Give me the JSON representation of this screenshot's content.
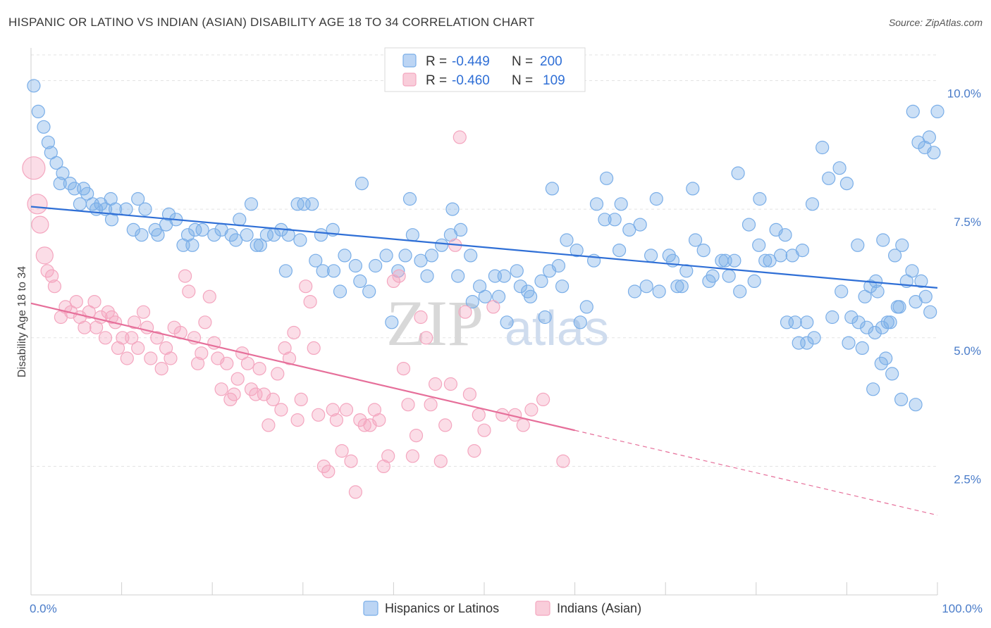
{
  "header": {
    "title": "HISPANIC OR LATINO VS INDIAN (ASIAN) DISABILITY AGE 18 TO 34 CORRELATION CHART",
    "source": "Source: ZipAtlas.com"
  },
  "watermark": {
    "zip": "ZIP",
    "atlas": "atlas"
  },
  "legend": {
    "r_label": "R =",
    "n_label": "N =",
    "rows": [
      {
        "r": "-0.449",
        "n": "200",
        "color": "#7aaee8"
      },
      {
        "r": "-0.460",
        "n": "109",
        "color": "#f4a6bf"
      }
    ]
  },
  "chart_data": {
    "type": "scatter",
    "title": "HISPANIC OR LATINO VS INDIAN (ASIAN) DISABILITY AGE 18 TO 34 CORRELATION CHART",
    "xlabel": "",
    "ylabel": "Disability Age 18 to 34",
    "xlim": [
      0,
      100
    ],
    "ylim": [
      0,
      10.5
    ],
    "x_tick_labels": [
      "0.0%",
      "100.0%"
    ],
    "y_ticks": [
      2.5,
      5.0,
      7.5,
      10.0
    ],
    "y_tick_labels": [
      "2.5%",
      "5.0%",
      "7.5%",
      "10.0%"
    ],
    "grid": true,
    "legend_position": "top-center",
    "series": [
      {
        "name": "Hispanics or Latinos",
        "color": "#7aaee8",
        "line_color": "#2f6fd6",
        "trend": {
          "x": [
            0,
            100
          ],
          "y": [
            7.55,
            5.97
          ]
        },
        "points": [
          [
            0.3,
            9.9
          ],
          [
            0.8,
            9.4
          ],
          [
            1.4,
            9.1
          ],
          [
            1.9,
            8.8
          ],
          [
            2.2,
            8.6
          ],
          [
            2.8,
            8.4
          ],
          [
            3.5,
            8.2
          ],
          [
            3.2,
            8.0
          ],
          [
            4.3,
            8.0
          ],
          [
            4.8,
            7.9
          ],
          [
            5.8,
            7.9
          ],
          [
            6.2,
            7.8
          ],
          [
            5.4,
            7.6
          ],
          [
            6.8,
            7.6
          ],
          [
            7.7,
            7.6
          ],
          [
            8.8,
            7.7
          ],
          [
            7.2,
            7.5
          ],
          [
            8.2,
            7.5
          ],
          [
            9.3,
            7.5
          ],
          [
            8.9,
            7.3
          ],
          [
            10.5,
            7.5
          ],
          [
            11.8,
            7.7
          ],
          [
            12.6,
            7.5
          ],
          [
            13.7,
            7.1
          ],
          [
            14.9,
            7.2
          ],
          [
            15.2,
            7.4
          ],
          [
            11.3,
            7.1
          ],
          [
            12.2,
            7.0
          ],
          [
            14.0,
            7.0
          ],
          [
            16.0,
            7.3
          ],
          [
            17.3,
            7.0
          ],
          [
            18.1,
            7.1
          ],
          [
            18.9,
            7.1
          ],
          [
            20.2,
            7.0
          ],
          [
            21.0,
            7.1
          ],
          [
            22.1,
            7.0
          ],
          [
            23.0,
            7.3
          ],
          [
            24.3,
            7.6
          ],
          [
            23.8,
            7.0
          ],
          [
            25.3,
            6.8
          ],
          [
            26.0,
            7.0
          ],
          [
            26.8,
            7.0
          ],
          [
            27.6,
            7.1
          ],
          [
            16.8,
            6.8
          ],
          [
            17.8,
            6.8
          ],
          [
            22.6,
            6.9
          ],
          [
            24.9,
            6.8
          ],
          [
            28.4,
            7.0
          ],
          [
            29.4,
            7.6
          ],
          [
            30.1,
            7.6
          ],
          [
            31.0,
            7.6
          ],
          [
            32.0,
            7.0
          ],
          [
            33.4,
            6.3
          ],
          [
            34.6,
            6.6
          ],
          [
            35.8,
            6.4
          ],
          [
            36.3,
            6.1
          ],
          [
            37.3,
            5.9
          ],
          [
            38.0,
            6.4
          ],
          [
            39.2,
            6.6
          ],
          [
            40.5,
            6.3
          ],
          [
            41.3,
            6.6
          ],
          [
            42.1,
            7.0
          ],
          [
            43.0,
            6.5
          ],
          [
            44.2,
            6.6
          ],
          [
            45.3,
            6.8
          ],
          [
            46.3,
            7.0
          ],
          [
            47.4,
            7.1
          ],
          [
            48.5,
            6.6
          ],
          [
            49.5,
            6.0
          ],
          [
            50.1,
            5.8
          ],
          [
            51.6,
            5.8
          ],
          [
            52.2,
            6.2
          ],
          [
            53.6,
            6.3
          ],
          [
            54.0,
            6.0
          ],
          [
            55.1,
            5.8
          ],
          [
            56.3,
            6.1
          ],
          [
            57.2,
            6.3
          ],
          [
            58.2,
            6.4
          ],
          [
            59.1,
            6.9
          ],
          [
            60.2,
            6.7
          ],
          [
            61.3,
            5.6
          ],
          [
            62.4,
            7.6
          ],
          [
            63.3,
            7.3
          ],
          [
            64.4,
            7.3
          ],
          [
            65.1,
            7.6
          ],
          [
            66.0,
            7.1
          ],
          [
            67.2,
            7.2
          ],
          [
            68.4,
            6.6
          ],
          [
            69.3,
            5.9
          ],
          [
            70.4,
            6.6
          ],
          [
            71.3,
            6.0
          ],
          [
            72.3,
            6.3
          ],
          [
            73.3,
            6.9
          ],
          [
            74.2,
            6.7
          ],
          [
            75.2,
            6.2
          ],
          [
            76.2,
            6.5
          ],
          [
            77.0,
            6.2
          ],
          [
            78.2,
            5.9
          ],
          [
            79.2,
            7.2
          ],
          [
            80.3,
            6.8
          ],
          [
            81.0,
            6.5
          ],
          [
            82.2,
            7.1
          ],
          [
            83.2,
            7.0
          ],
          [
            84.0,
            6.6
          ],
          [
            85.1,
            6.7
          ],
          [
            86.2,
            7.6
          ],
          [
            87.3,
            8.7
          ],
          [
            88.0,
            8.1
          ],
          [
            89.2,
            8.3
          ],
          [
            90.0,
            8.0
          ],
          [
            91.2,
            6.8
          ],
          [
            92.0,
            5.8
          ],
          [
            93.2,
            6.1
          ],
          [
            94.0,
            6.9
          ],
          [
            95.3,
            6.6
          ],
          [
            96.1,
            6.8
          ],
          [
            97.2,
            6.3
          ],
          [
            98.2,
            6.1
          ],
          [
            99.2,
            5.5
          ],
          [
            36.5,
            8.0
          ],
          [
            41.8,
            7.7
          ],
          [
            46.5,
            7.5
          ],
          [
            57.5,
            7.9
          ],
          [
            63.5,
            8.1
          ],
          [
            69.0,
            7.7
          ],
          [
            73.0,
            7.9
          ],
          [
            78.0,
            8.2
          ],
          [
            80.4,
            7.7
          ],
          [
            83.4,
            5.3
          ],
          [
            84.7,
            4.9
          ],
          [
            84.3,
            5.3
          ],
          [
            85.6,
            5.3
          ],
          [
            86.4,
            5.0
          ],
          [
            88.4,
            5.4
          ],
          [
            89.4,
            5.9
          ],
          [
            90.5,
            5.4
          ],
          [
            91.3,
            5.3
          ],
          [
            92.6,
            6.0
          ],
          [
            93.4,
            5.9
          ],
          [
            94.5,
            5.3
          ],
          [
            95.6,
            5.6
          ],
          [
            96.6,
            6.1
          ],
          [
            97.6,
            5.7
          ],
          [
            98.7,
            5.8
          ],
          [
            28.1,
            6.3
          ],
          [
            29.7,
            6.9
          ],
          [
            31.4,
            6.5
          ],
          [
            32.2,
            6.3
          ],
          [
            33.3,
            7.1
          ],
          [
            34.1,
            5.9
          ],
          [
            39.8,
            5.3
          ],
          [
            43.7,
            6.2
          ],
          [
            47.1,
            6.2
          ],
          [
            48.7,
            5.7
          ],
          [
            51.2,
            6.2
          ],
          [
            52.5,
            5.3
          ],
          [
            54.8,
            5.9
          ],
          [
            56.7,
            5.4
          ],
          [
            58.6,
            6.0
          ],
          [
            60.6,
            5.3
          ],
          [
            62.1,
            6.5
          ],
          [
            64.9,
            6.7
          ],
          [
            66.6,
            5.9
          ],
          [
            67.9,
            6.0
          ],
          [
            70.8,
            6.5
          ],
          [
            71.8,
            6.0
          ],
          [
            74.8,
            6.1
          ],
          [
            76.6,
            6.5
          ],
          [
            77.6,
            6.5
          ],
          [
            79.8,
            6.1
          ],
          [
            81.5,
            6.5
          ],
          [
            82.7,
            6.6
          ],
          [
            85.6,
            4.9
          ],
          [
            90.2,
            4.9
          ],
          [
            91.7,
            4.8
          ],
          [
            93.1,
            5.1
          ],
          [
            93.8,
            4.5
          ],
          [
            97.3,
            9.4
          ],
          [
            97.9,
            8.8
          ],
          [
            98.6,
            8.7
          ],
          [
            99.1,
            8.9
          ],
          [
            99.6,
            8.6
          ],
          [
            100.0,
            9.4
          ],
          [
            95.0,
            4.3
          ],
          [
            94.3,
            4.6
          ],
          [
            96.0,
            3.8
          ],
          [
            97.6,
            3.7
          ],
          [
            92.9,
            4.0
          ],
          [
            92.2,
            5.2
          ],
          [
            93.9,
            5.2
          ],
          [
            94.8,
            5.3
          ],
          [
            95.8,
            5.6
          ]
        ]
      },
      {
        "name": "Indians (Asian)",
        "color": "#f4a6bf",
        "line_color": "#e66f9a",
        "trend": {
          "x": [
            0,
            60
          ],
          "y": [
            5.67,
            3.2
          ],
          "dashed_to": [
            100,
            1.55
          ]
        },
        "points": [
          [
            0.3,
            8.3
          ],
          [
            0.7,
            7.6
          ],
          [
            1.0,
            7.2
          ],
          [
            1.5,
            6.6
          ],
          [
            1.8,
            6.3
          ],
          [
            2.3,
            6.2
          ],
          [
            2.6,
            6.0
          ],
          [
            3.3,
            5.4
          ],
          [
            3.8,
            5.6
          ],
          [
            4.4,
            5.5
          ],
          [
            5.0,
            5.7
          ],
          [
            5.4,
            5.4
          ],
          [
            5.9,
            5.2
          ],
          [
            6.4,
            5.5
          ],
          [
            7.0,
            5.7
          ],
          [
            7.2,
            5.2
          ],
          [
            7.7,
            5.4
          ],
          [
            8.2,
            5.0
          ],
          [
            8.5,
            5.5
          ],
          [
            8.9,
            5.4
          ],
          [
            9.3,
            5.3
          ],
          [
            9.6,
            4.8
          ],
          [
            10.1,
            5.0
          ],
          [
            10.6,
            4.6
          ],
          [
            11.1,
            5.0
          ],
          [
            11.4,
            5.3
          ],
          [
            11.8,
            4.8
          ],
          [
            12.4,
            5.5
          ],
          [
            12.8,
            5.2
          ],
          [
            13.2,
            4.6
          ],
          [
            13.9,
            5.0
          ],
          [
            14.4,
            4.4
          ],
          [
            14.9,
            4.8
          ],
          [
            15.4,
            4.6
          ],
          [
            15.8,
            5.2
          ],
          [
            16.5,
            5.1
          ],
          [
            17.0,
            6.2
          ],
          [
            17.4,
            5.9
          ],
          [
            18.0,
            5.0
          ],
          [
            18.4,
            4.5
          ],
          [
            18.8,
            4.7
          ],
          [
            19.2,
            5.3
          ],
          [
            19.7,
            5.8
          ],
          [
            20.2,
            4.9
          ],
          [
            20.6,
            4.6
          ],
          [
            21.0,
            4.0
          ],
          [
            21.6,
            4.5
          ],
          [
            22.0,
            3.8
          ],
          [
            22.4,
            3.9
          ],
          [
            22.8,
            4.2
          ],
          [
            23.3,
            4.7
          ],
          [
            23.9,
            4.5
          ],
          [
            24.3,
            4.0
          ],
          [
            24.8,
            3.9
          ],
          [
            25.2,
            4.4
          ],
          [
            25.7,
            3.9
          ],
          [
            26.2,
            3.3
          ],
          [
            26.7,
            3.8
          ],
          [
            27.2,
            4.3
          ],
          [
            27.6,
            3.6
          ],
          [
            28.0,
            4.8
          ],
          [
            28.5,
            4.6
          ],
          [
            29.0,
            5.1
          ],
          [
            29.4,
            3.4
          ],
          [
            29.8,
            3.8
          ],
          [
            30.3,
            6.0
          ],
          [
            30.8,
            5.7
          ],
          [
            31.2,
            4.8
          ],
          [
            31.7,
            3.5
          ],
          [
            32.3,
            2.5
          ],
          [
            32.8,
            2.4
          ],
          [
            33.3,
            3.6
          ],
          [
            33.7,
            3.4
          ],
          [
            34.3,
            2.8
          ],
          [
            34.8,
            3.6
          ],
          [
            35.3,
            2.6
          ],
          [
            35.8,
            2.0
          ],
          [
            36.3,
            3.4
          ],
          [
            36.8,
            3.3
          ],
          [
            37.4,
            3.3
          ],
          [
            37.9,
            3.6
          ],
          [
            38.4,
            3.4
          ],
          [
            38.9,
            2.5
          ],
          [
            39.4,
            2.7
          ],
          [
            40.0,
            6.1
          ],
          [
            40.6,
            6.2
          ],
          [
            41.1,
            4.4
          ],
          [
            41.6,
            3.7
          ],
          [
            42.1,
            2.7
          ],
          [
            42.5,
            3.1
          ],
          [
            43.0,
            5.4
          ],
          [
            43.6,
            5.0
          ],
          [
            44.1,
            3.7
          ],
          [
            44.6,
            4.1
          ],
          [
            45.2,
            2.6
          ],
          [
            45.7,
            3.3
          ],
          [
            46.3,
            4.1
          ],
          [
            46.8,
            6.8
          ],
          [
            47.3,
            8.9
          ],
          [
            47.9,
            5.5
          ],
          [
            48.4,
            3.9
          ],
          [
            48.9,
            2.8
          ],
          [
            49.4,
            3.5
          ],
          [
            50.0,
            3.2
          ],
          [
            51.0,
            5.6
          ],
          [
            52.0,
            3.5
          ],
          [
            53.4,
            3.5
          ],
          [
            54.3,
            3.3
          ],
          [
            55.2,
            3.6
          ],
          [
            56.5,
            3.8
          ],
          [
            58.7,
            2.6
          ]
        ]
      }
    ]
  },
  "bottom_legend": [
    {
      "label": "Hispanics or Latinos",
      "color": "#7aaee8"
    },
    {
      "label": "Indians (Asian)",
      "color": "#f4a6bf"
    }
  ]
}
